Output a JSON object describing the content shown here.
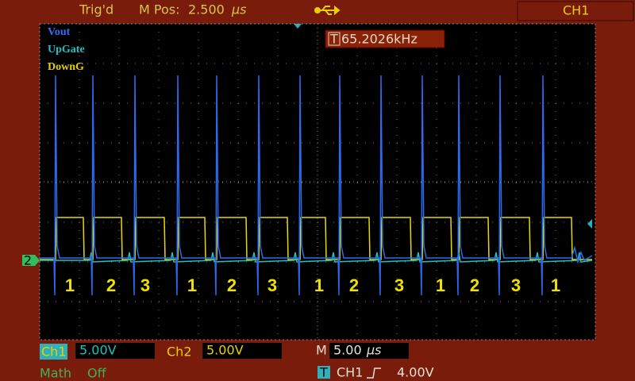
{
  "top_bar": {
    "trigger_status": "Trig'd",
    "m_pos_label": "M Pos:",
    "m_pos_value": "2.500",
    "m_pos_unit": "µs",
    "channel": "CH1"
  },
  "traces": [
    "Vout",
    "UpGate",
    "DownG"
  ],
  "frequency": {
    "icon": "T",
    "value": "65.2026kHz"
  },
  "channel_marker": "2",
  "phase_labels": [
    1,
    2,
    3,
    1,
    2,
    3,
    1,
    2,
    3,
    1,
    2,
    3,
    1
  ],
  "bottom_bar": {
    "ch1_label": "Ch1",
    "ch1_scale": "5.00V",
    "ch2_label": "Ch2",
    "ch2_scale": "5.00V",
    "time_label": "M",
    "time_value": "5.00",
    "time_unit": "µs",
    "math_label": "Math",
    "math_value": "Off",
    "trigger_icon": "T",
    "trigger_source": "CH1",
    "trigger_level": "4.00V"
  }
}
